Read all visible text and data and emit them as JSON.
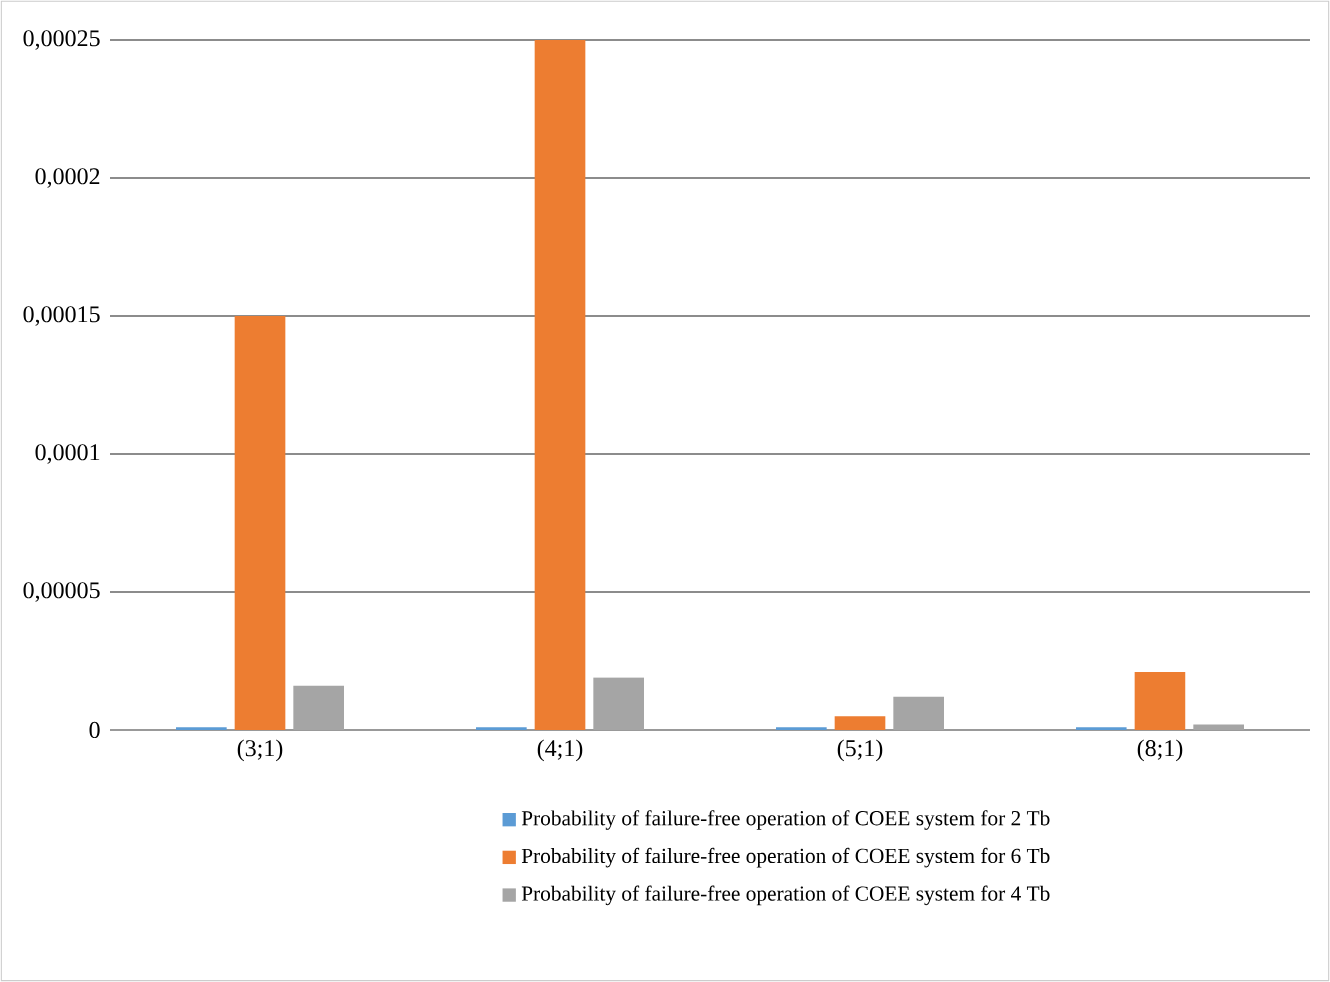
{
  "chart_data": {
    "type": "bar",
    "categories": [
      "(3;1)",
      "(4;1)",
      "(5;1)",
      "(8;1)"
    ],
    "series": [
      {
        "name": "Probability of failure-free operation of COEE system for 2 Tb",
        "color": "#5b9bd5",
        "values": [
          1e-06,
          1e-06,
          1e-06,
          1e-06
        ]
      },
      {
        "name": "Probability of failure-free operation of COEE system for 6 Tb",
        "color": "#ed7d31",
        "values": [
          0.00015,
          0.00025,
          5e-06,
          2.1e-05
        ]
      },
      {
        "name": "Probability of failure-free operation of COEE system for 4 Tb",
        "color": "#a5a5a5",
        "values": [
          1.6e-05,
          1.9e-05,
          1.2e-05,
          2e-06
        ]
      }
    ],
    "ylim": [
      0,
      0.00025
    ],
    "yticks": [
      0,
      {
        "value": 5e-05,
        "label": "0,00005"
      },
      {
        "value": 0.0001,
        "label": "0,0001"
      },
      {
        "value": 0.00015,
        "label": "0,00015"
      },
      {
        "value": 0.0002,
        "label": "0,0002"
      },
      {
        "value": 0.00025,
        "label": "0,00025"
      }
    ],
    "grid": "y",
    "legend": "bottom"
  }
}
